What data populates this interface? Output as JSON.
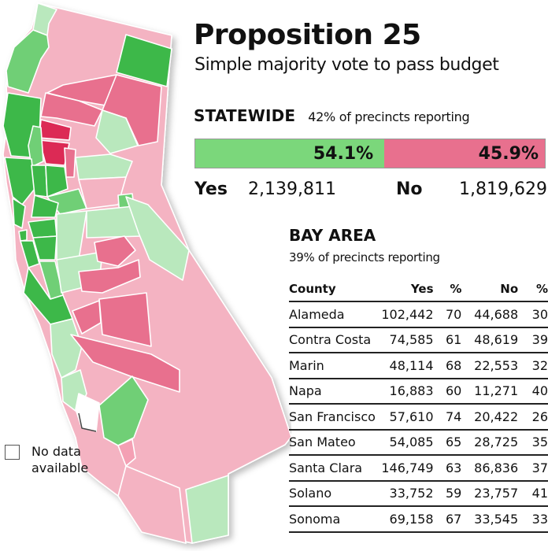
{
  "header": {
    "title": "Proposition 25",
    "subtitle": "Simple majority vote to pass budget"
  },
  "statewide": {
    "label": "STATEWIDE",
    "reporting": "42% of precincts reporting",
    "yes_pct": "54.1%",
    "no_pct": "45.9%",
    "yes_share": 54.1,
    "yes_label": "Yes",
    "yes_votes": "2,139,811",
    "no_label": "No",
    "no_votes": "1,819,629",
    "colors": {
      "yes": "#7bd77b",
      "no": "#e8708e"
    }
  },
  "bay_area": {
    "title": "BAY AREA",
    "reporting": "39% of precincts reporting",
    "columns": [
      "County",
      "Yes",
      "%",
      "No",
      "%"
    ],
    "rows": [
      {
        "county": "Alameda",
        "yes": "102,442",
        "yes_pct": "70",
        "no": "44,688",
        "no_pct": "30"
      },
      {
        "county": "Contra Costa",
        "yes": "74,585",
        "yes_pct": "61",
        "no": "48,619",
        "no_pct": "39"
      },
      {
        "county": "Marin",
        "yes": "48,114",
        "yes_pct": "68",
        "no": "22,553",
        "no_pct": "32"
      },
      {
        "county": "Napa",
        "yes": "16,883",
        "yes_pct": "60",
        "no": "11,271",
        "no_pct": "40"
      },
      {
        "county": "San Francisco",
        "yes": "57,610",
        "yes_pct": "74",
        "no": "20,422",
        "no_pct": "26"
      },
      {
        "county": "San Mateo",
        "yes": "54,085",
        "yes_pct": "65",
        "no": "28,725",
        "no_pct": "35"
      },
      {
        "county": "Santa Clara",
        "yes": "146,749",
        "yes_pct": "63",
        "no": "86,836",
        "no_pct": "37"
      },
      {
        "county": "Solano",
        "yes": "33,752",
        "yes_pct": "59",
        "no": "23,757",
        "no_pct": "41"
      },
      {
        "county": "Sonoma",
        "yes": "69,158",
        "yes_pct": "67",
        "no": "33,545",
        "no_pct": "33"
      }
    ]
  },
  "legend": {
    "no_data_label": "No data available"
  },
  "map": {
    "palette": {
      "yes_strong": "#3db84a",
      "yes_medium": "#6fcf76",
      "yes_light": "#b9e8bd",
      "no_light": "#f4b3c2",
      "no_medium": "#e8708e",
      "no_strong": "#dc2a55",
      "no_data": "#ffffff"
    }
  }
}
